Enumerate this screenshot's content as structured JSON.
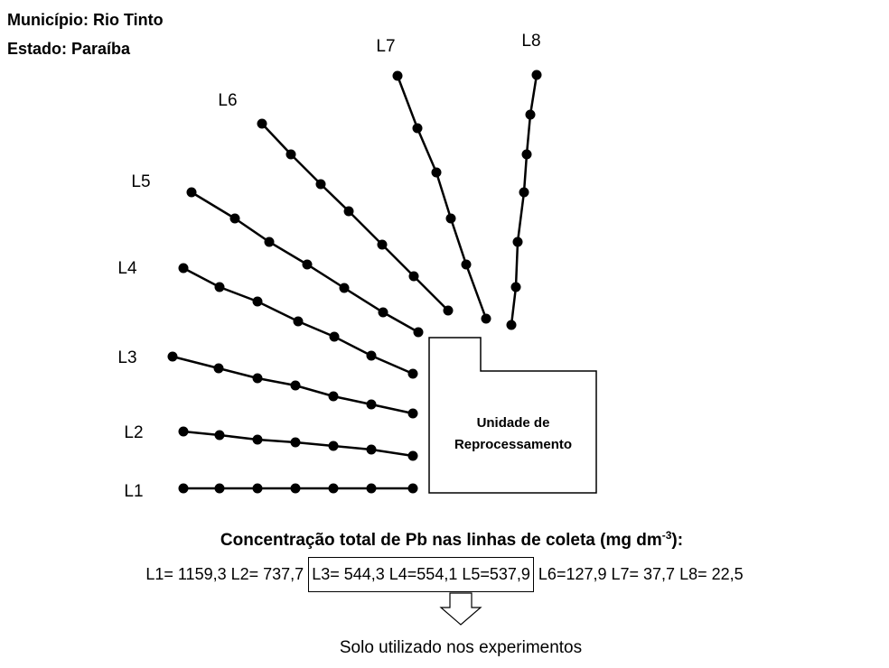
{
  "header": {
    "municipality": "Município: Rio Tinto",
    "state": "Estado: Paraíba"
  },
  "line_labels": [
    "L1",
    "L2",
    "L3",
    "L4",
    "L5",
    "L6",
    "L7",
    "L8"
  ],
  "building": {
    "line1": "Unidade de",
    "line2": "Reprocessamento"
  },
  "caption": {
    "title_prefix": "Concentração total de Pb nas linhas de coleta (mg dm",
    "superscript": "-3",
    "title_suffix": "):",
    "concentrations": [
      "L1= 1159,3",
      "L2= 737,7",
      "L3= 544,3",
      "L4=554,1",
      "L5=537,9",
      "L6=127,9",
      "L7= 37,7",
      "L8= 22,5"
    ]
  },
  "footnote": "Solo utilizado nos experimentos"
}
